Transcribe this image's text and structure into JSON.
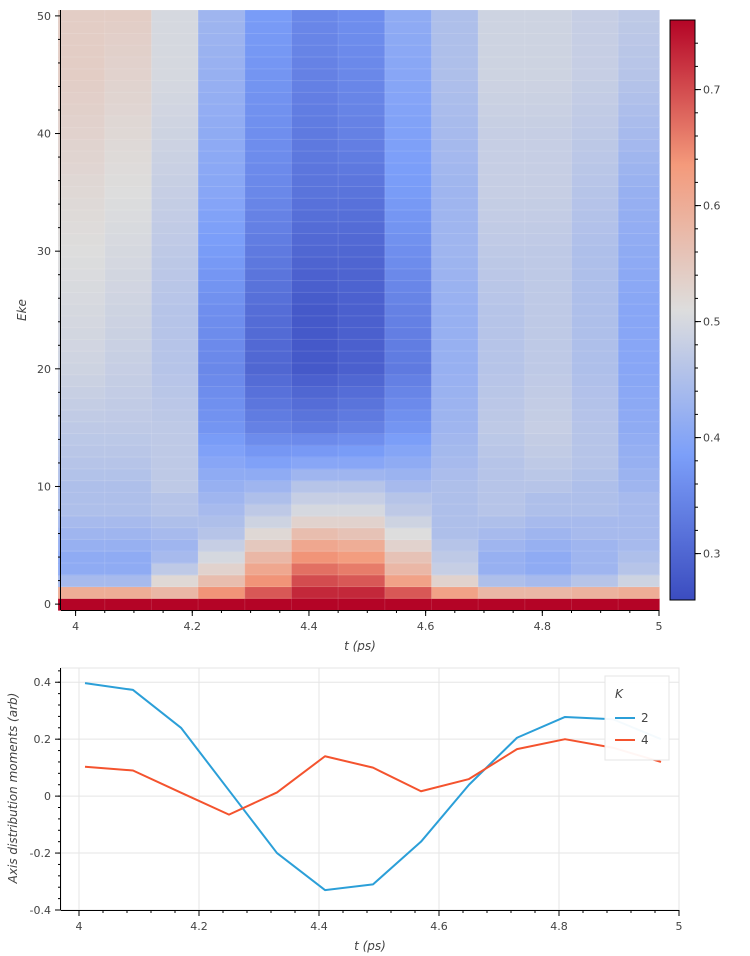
{
  "chart_data": [
    {
      "type": "heatmap",
      "xlabel": "t (ps)",
      "ylabel": "Eke",
      "xlim": [
        3.975,
        5.0
      ],
      "ylim": [
        -0.5,
        50.5
      ],
      "x_ticks": [
        "4",
        "4.2",
        "4.4",
        "4.6",
        "4.8",
        "5"
      ],
      "y_ticks": [
        "0",
        "10",
        "20",
        "30",
        "40",
        "50"
      ],
      "colorbar": {
        "range": [
          0.26,
          0.76
        ],
        "ticks": [
          "0.3",
          "0.4",
          "0.5",
          "0.6",
          "0.7"
        ],
        "colormap": "coolwarm"
      },
      "x_centers": [
        4.01,
        4.09,
        4.17,
        4.25,
        4.33,
        4.41,
        4.49,
        4.57,
        4.65,
        4.73,
        4.81,
        4.89,
        4.97
      ],
      "profile_y": [
        0,
        1,
        2,
        3,
        4,
        5,
        6,
        7,
        8,
        9,
        10,
        12,
        15,
        20,
        25,
        30,
        35,
        40,
        45,
        50
      ],
      "profiles": [
        [
          0.76,
          0.6,
          0.44,
          0.41,
          0.41,
          0.42,
          0.43,
          0.44,
          0.45,
          0.45,
          0.45,
          0.46,
          0.47,
          0.49,
          0.5,
          0.51,
          0.52,
          0.53,
          0.54,
          0.54
        ],
        [
          0.76,
          0.6,
          0.44,
          0.41,
          0.41,
          0.42,
          0.43,
          0.44,
          0.45,
          0.45,
          0.45,
          0.46,
          0.47,
          0.48,
          0.49,
          0.5,
          0.51,
          0.52,
          0.53,
          0.54
        ],
        [
          0.76,
          0.58,
          0.52,
          0.47,
          0.44,
          0.43,
          0.44,
          0.45,
          0.46,
          0.46,
          0.47,
          0.47,
          0.47,
          0.46,
          0.46,
          0.47,
          0.48,
          0.49,
          0.5,
          0.5
        ],
        [
          0.76,
          0.64,
          0.57,
          0.53,
          0.5,
          0.48,
          0.46,
          0.45,
          0.44,
          0.43,
          0.42,
          0.4,
          0.37,
          0.35,
          0.36,
          0.38,
          0.4,
          0.41,
          0.42,
          0.43
        ],
        [
          0.76,
          0.69,
          0.64,
          0.61,
          0.58,
          0.55,
          0.52,
          0.49,
          0.47,
          0.45,
          0.43,
          0.39,
          0.34,
          0.3,
          0.31,
          0.33,
          0.35,
          0.36,
          0.37,
          0.38
        ],
        [
          0.76,
          0.73,
          0.7,
          0.67,
          0.64,
          0.61,
          0.57,
          0.53,
          0.5,
          0.48,
          0.46,
          0.4,
          0.33,
          0.28,
          0.28,
          0.3,
          0.32,
          0.33,
          0.34,
          0.35
        ],
        [
          0.76,
          0.73,
          0.69,
          0.66,
          0.63,
          0.6,
          0.56,
          0.53,
          0.5,
          0.48,
          0.46,
          0.4,
          0.34,
          0.29,
          0.29,
          0.3,
          0.32,
          0.34,
          0.35,
          0.36
        ],
        [
          0.76,
          0.69,
          0.62,
          0.58,
          0.56,
          0.53,
          0.51,
          0.49,
          0.47,
          0.46,
          0.44,
          0.41,
          0.37,
          0.33,
          0.34,
          0.36,
          0.38,
          0.39,
          0.4,
          0.41
        ],
        [
          0.76,
          0.62,
          0.53,
          0.48,
          0.47,
          0.46,
          0.45,
          0.45,
          0.45,
          0.45,
          0.45,
          0.44,
          0.43,
          0.42,
          0.42,
          0.43,
          0.43,
          0.44,
          0.45,
          0.45
        ],
        [
          0.76,
          0.58,
          0.45,
          0.42,
          0.42,
          0.43,
          0.44,
          0.45,
          0.46,
          0.46,
          0.46,
          0.46,
          0.47,
          0.46,
          0.46,
          0.47,
          0.48,
          0.48,
          0.49,
          0.49
        ],
        [
          0.76,
          0.58,
          0.44,
          0.41,
          0.41,
          0.42,
          0.43,
          0.44,
          0.45,
          0.45,
          0.46,
          0.47,
          0.48,
          0.47,
          0.47,
          0.47,
          0.48,
          0.48,
          0.49,
          0.49
        ],
        [
          0.76,
          0.59,
          0.46,
          0.43,
          0.43,
          0.43,
          0.44,
          0.44,
          0.45,
          0.45,
          0.45,
          0.46,
          0.46,
          0.45,
          0.45,
          0.45,
          0.46,
          0.47,
          0.48,
          0.48
        ],
        [
          0.76,
          0.6,
          0.49,
          0.46,
          0.45,
          0.44,
          0.44,
          0.44,
          0.44,
          0.44,
          0.43,
          0.42,
          0.41,
          0.4,
          0.4,
          0.41,
          0.42,
          0.44,
          0.46,
          0.47
        ]
      ]
    },
    {
      "type": "line",
      "xlabel": "t (ps)",
      "ylabel": "Axis distribution moments (arb)",
      "xlim": [
        3.97,
        5.0
      ],
      "ylim": [
        -0.4,
        0.45
      ],
      "grid": true,
      "x_ticks": [
        "4",
        "4.2",
        "4.4",
        "4.6",
        "4.8",
        "5"
      ],
      "y_ticks": [
        "-0.4",
        "-0.2",
        "0",
        "0.2",
        "0.4"
      ],
      "legend": {
        "title": "K",
        "placement": "top-right"
      },
      "x": [
        4.01,
        4.09,
        4.17,
        4.25,
        4.33,
        4.41,
        4.49,
        4.57,
        4.65,
        4.73,
        4.81,
        4.89,
        4.97
      ],
      "series": [
        {
          "name": "2",
          "color": "#2b9fd8",
          "values": [
            0.397,
            0.373,
            0.24,
            0.02,
            -0.2,
            -0.33,
            -0.31,
            -0.16,
            0.04,
            0.205,
            0.278,
            0.27,
            0.2
          ]
        },
        {
          "name": "4",
          "color": "#f4532e",
          "values": [
            0.103,
            0.09,
            0.012,
            -0.065,
            0.013,
            0.14,
            0.1,
            0.017,
            0.06,
            0.165,
            0.2,
            0.17,
            0.12
          ]
        }
      ]
    }
  ]
}
